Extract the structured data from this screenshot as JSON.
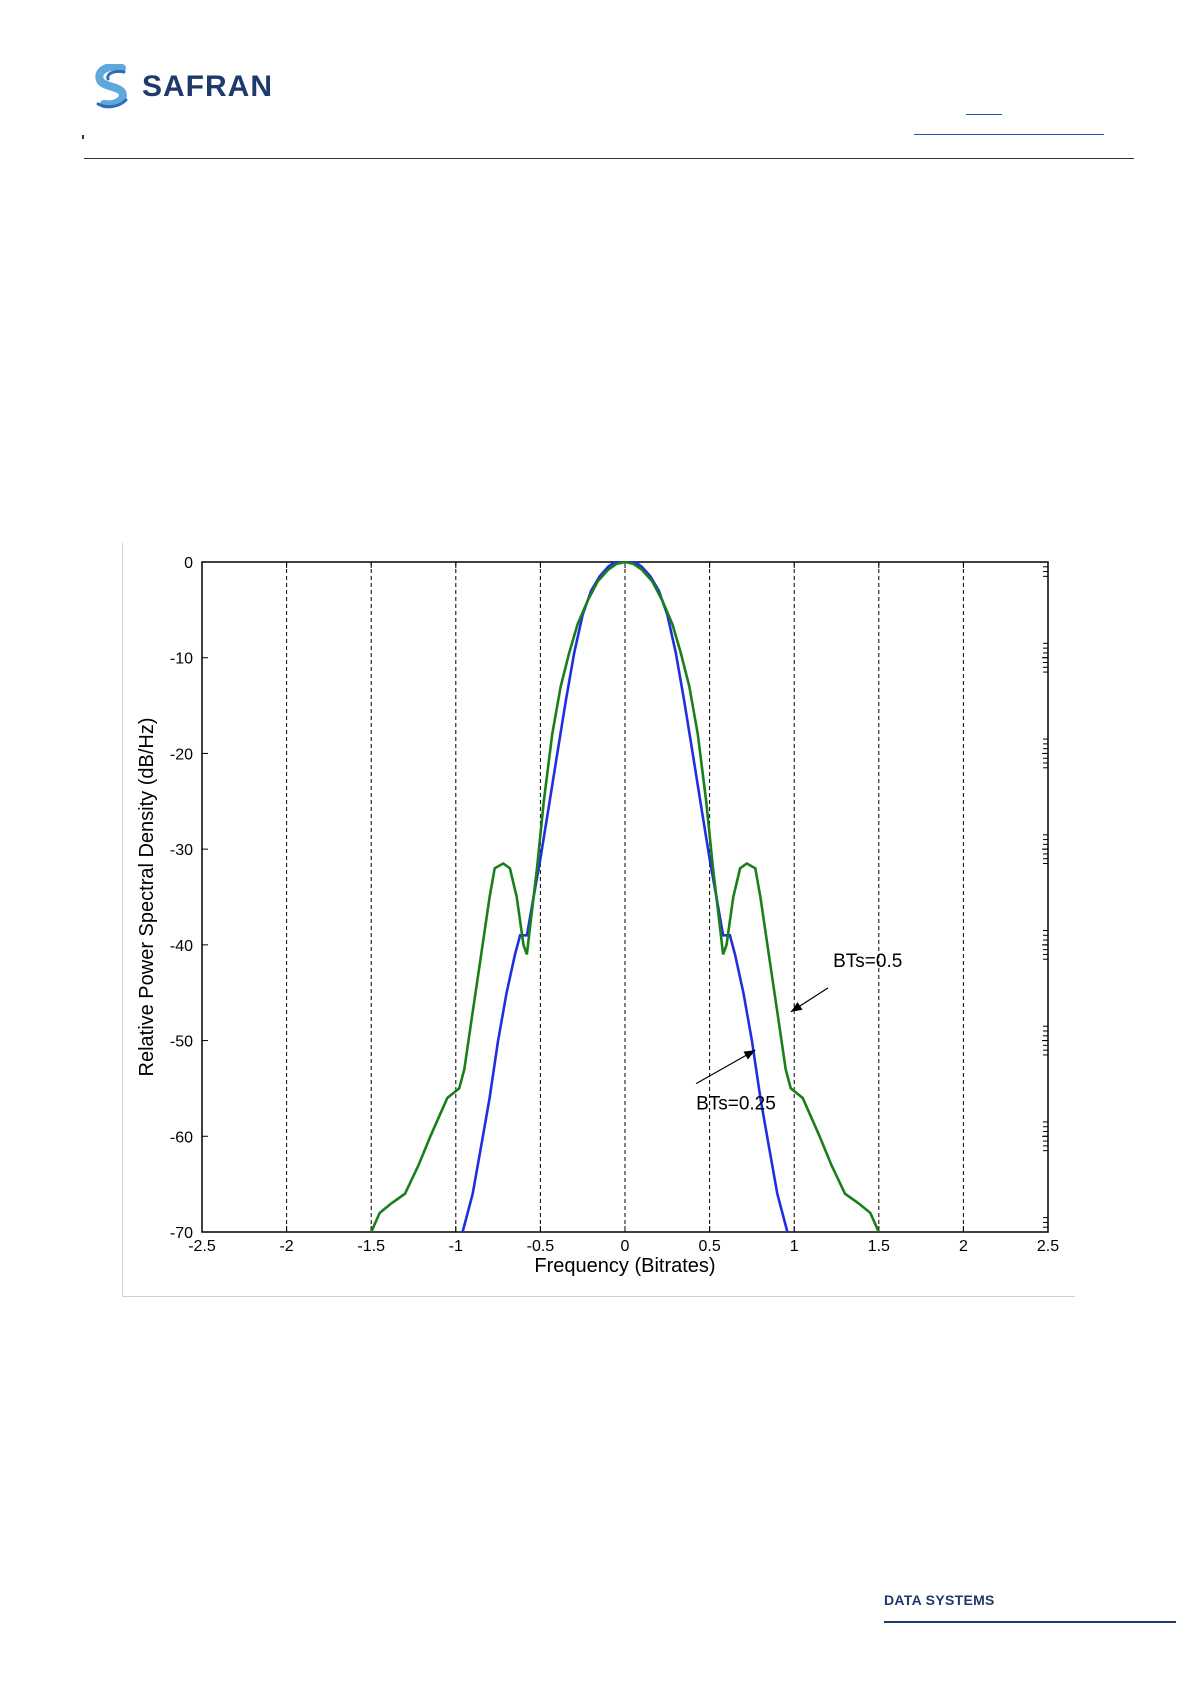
{
  "header": {
    "brand": "SAFRAN"
  },
  "footer": {
    "division": "DATA SYSTEMS"
  },
  "colors": {
    "brand_navy": "#1d3a6b",
    "brand_light_blue": "#5fa8de",
    "series_blue": "#1f2fe0",
    "series_green": "#1a7f1a"
  },
  "chart_data": {
    "type": "line",
    "title": "",
    "xlabel": "Frequency (Bitrates)",
    "ylabel": "Relative Power Spectral Density (dB/Hz)",
    "xlim": [
      -2.5,
      2.5
    ],
    "ylim": [
      -70,
      0
    ],
    "xticks": [
      -2.5,
      -2,
      -1.5,
      -1,
      -0.5,
      0,
      0.5,
      1,
      1.5,
      2,
      2.5
    ],
    "xtick_labels": [
      "-2.5",
      "-2",
      "-1.5",
      "-1",
      "-0.5",
      "0",
      "0.5",
      "1",
      "1.5",
      "2",
      "2.5"
    ],
    "yticks": [
      0,
      -10,
      -20,
      -30,
      -40,
      -50,
      -60,
      -70
    ],
    "ytick_labels": [
      "0",
      "-10",
      "-20",
      "-30",
      "-40",
      "-50",
      "-60",
      "-70"
    ],
    "grid": "vertical dashed",
    "series": [
      {
        "color": "#1f2fe0",
        "x": [
          -0.96,
          -0.9,
          -0.85,
          -0.8,
          -0.75,
          -0.7,
          -0.65,
          -0.62,
          -0.58,
          -0.55,
          -0.5,
          -0.45,
          -0.4,
          -0.35,
          -0.3,
          -0.25,
          -0.2,
          -0.15,
          -0.1,
          -0.06,
          -0.04,
          0.0,
          0.04,
          0.06,
          0.1,
          0.15,
          0.2,
          0.25,
          0.3,
          0.35,
          0.4,
          0.45,
          0.5,
          0.55,
          0.58,
          0.62,
          0.65,
          0.7,
          0.75,
          0.8,
          0.85,
          0.9,
          0.96
        ],
        "y": [
          -70,
          -66,
          -61,
          -56,
          -50,
          -45,
          -41,
          -39,
          -39,
          -36,
          -31,
          -25.5,
          -20,
          -14.5,
          -9.5,
          -5.5,
          -3,
          -1.5,
          -0.5,
          0,
          0,
          0,
          0,
          0,
          -0.5,
          -1.5,
          -3,
          -5.5,
          -9.5,
          -14.5,
          -20,
          -25.5,
          -31,
          -36,
          -39,
          -39,
          -41,
          -45,
          -50,
          -56,
          -61,
          -66,
          -70
        ]
      },
      {
        "color": "#1a7f1a",
        "x": [
          -1.5,
          -1.45,
          -1.38,
          -1.3,
          -1.22,
          -1.15,
          -1.05,
          -0.98,
          -0.95,
          -0.9,
          -0.85,
          -0.8,
          -0.77,
          -0.72,
          -0.68,
          -0.64,
          -0.6,
          -0.58,
          -0.56,
          -0.52,
          -0.48,
          -0.43,
          -0.38,
          -0.33,
          -0.28,
          -0.22,
          -0.16,
          -0.1,
          -0.05,
          0.0,
          0.05,
          0.1,
          0.16,
          0.22,
          0.28,
          0.33,
          0.38,
          0.43,
          0.48,
          0.52,
          0.56,
          0.58,
          0.6,
          0.64,
          0.68,
          0.72,
          0.77,
          0.8,
          0.85,
          0.9,
          0.95,
          0.98,
          1.05,
          1.15,
          1.22,
          1.3,
          1.38,
          1.45,
          1.5
        ],
        "y": [
          -70,
          -68,
          -67,
          -66,
          -63,
          -60,
          -56,
          -55,
          -53,
          -47,
          -41,
          -35,
          -32,
          -31.5,
          -32,
          -35,
          -40,
          -41,
          -38,
          -32,
          -25,
          -18,
          -13,
          -9.5,
          -6.5,
          -4,
          -2,
          -0.8,
          -0.2,
          0,
          -0.2,
          -0.8,
          -2,
          -4,
          -6.5,
          -9.5,
          -13,
          -18,
          -25,
          -32,
          -38,
          -41,
          -40,
          -35,
          -32,
          -31.5,
          -32,
          -35,
          -41,
          -47,
          -53,
          -55,
          -56,
          -60,
          -63,
          -66,
          -67,
          -68,
          -70
        ]
      }
    ],
    "annotations": [
      {
        "text": "BTs=0.5",
        "points_to": {
          "x": 0.98,
          "y": -47
        }
      },
      {
        "text": "BTs=0.25",
        "points_to": {
          "x": 0.77,
          "y": -51
        }
      }
    ]
  }
}
